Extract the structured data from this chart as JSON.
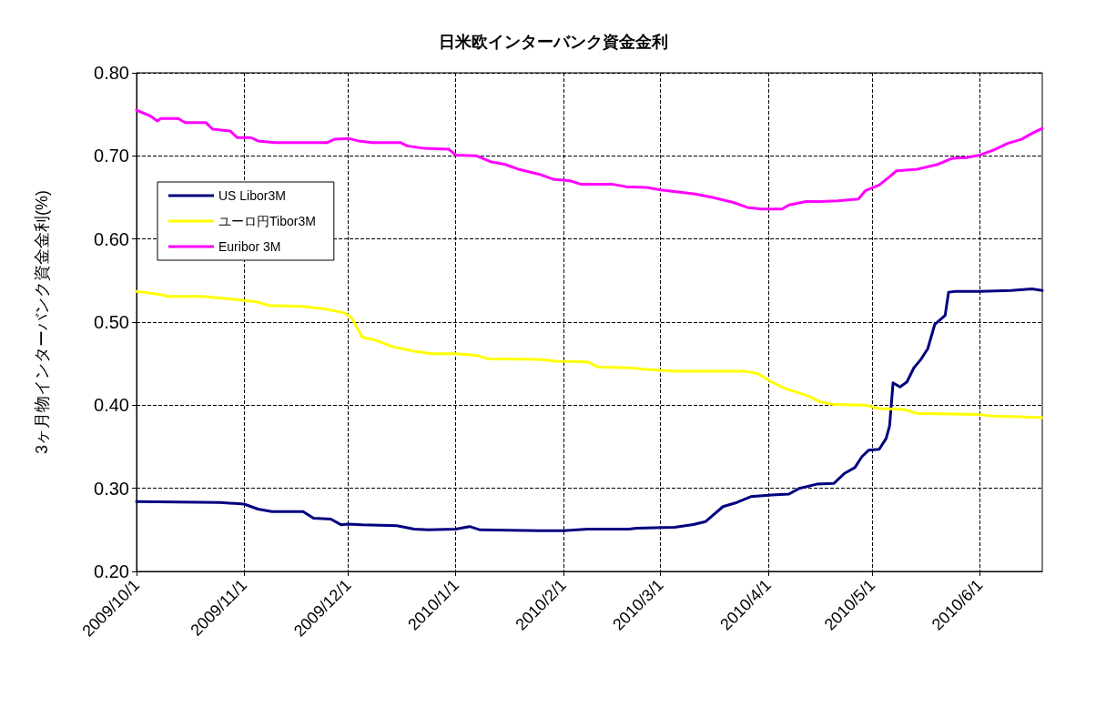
{
  "chart_data": {
    "type": "line",
    "title": "日米欧インターバンク資金金利",
    "ylabel": "3ヶ月物インターバンク資金金利(%)",
    "xlim": [
      "2009-10-01",
      "2010-06-19"
    ],
    "xticks": [
      {
        "value": "2009-10-01",
        "label": "2009/10/1"
      },
      {
        "value": "2009-11-01",
        "label": "2009/11/1"
      },
      {
        "value": "2009-12-01",
        "label": "2009/12/1"
      },
      {
        "value": "2010-01-01",
        "label": "2010/1/1"
      },
      {
        "value": "2010-02-01",
        "label": "2010/2/1"
      },
      {
        "value": "2010-03-01",
        "label": "2010/3/1"
      },
      {
        "value": "2010-04-01",
        "label": "2010/4/1"
      },
      {
        "value": "2010-05-01",
        "label": "2010/5/1"
      },
      {
        "value": "2010-06-01",
        "label": "2010/6/1"
      }
    ],
    "ylim": [
      0.2,
      0.8
    ],
    "yticks": [
      {
        "value": 0.2,
        "label": "0.20"
      },
      {
        "value": 0.3,
        "label": "0.30"
      },
      {
        "value": 0.4,
        "label": "0.40"
      },
      {
        "value": 0.5,
        "label": "0.50"
      },
      {
        "value": 0.6,
        "label": "0.60"
      },
      {
        "value": 0.7,
        "label": "0.70"
      },
      {
        "value": 0.8,
        "label": "0.80"
      }
    ],
    "grid": true,
    "legend": "top left",
    "marker": "none",
    "line_style": "solid",
    "series": [
      {
        "name": "US Libor3M",
        "color": "#000080",
        "x": [
          "2009-10-01",
          "2009-10-25",
          "2009-11-01",
          "2009-11-05",
          "2009-11-09",
          "2009-11-18",
          "2009-11-21",
          "2009-11-26",
          "2009-11-29",
          "2009-12-01",
          "2009-12-05",
          "2009-12-15",
          "2009-12-20",
          "2009-12-24",
          "2010-01-01",
          "2010-01-05",
          "2010-01-08",
          "2010-01-25",
          "2010-02-01",
          "2010-02-08",
          "2010-02-20",
          "2010-02-22",
          "2010-03-05",
          "2010-03-10",
          "2010-03-14",
          "2010-03-19",
          "2010-03-23",
          "2010-03-27",
          "2010-04-02",
          "2010-04-07",
          "2010-04-10",
          "2010-04-15",
          "2010-04-20",
          "2010-04-23",
          "2010-04-26",
          "2010-04-28",
          "2010-04-30",
          "2010-05-03",
          "2010-05-05",
          "2010-05-06",
          "2010-05-07",
          "2010-05-09",
          "2010-05-11",
          "2010-05-13",
          "2010-05-15",
          "2010-05-17",
          "2010-05-19",
          "2010-05-22",
          "2010-05-23",
          "2010-05-25",
          "2010-06-01",
          "2010-06-10",
          "2010-06-16",
          "2010-06-19"
        ],
        "values": [
          0.284,
          0.283,
          0.281,
          0.275,
          0.272,
          0.272,
          0.264,
          0.263,
          0.256,
          0.257,
          0.256,
          0.255,
          0.251,
          0.25,
          0.251,
          0.254,
          0.25,
          0.249,
          0.249,
          0.251,
          0.251,
          0.252,
          0.253,
          0.256,
          0.26,
          0.278,
          0.283,
          0.29,
          0.292,
          0.293,
          0.3,
          0.305,
          0.306,
          0.318,
          0.325,
          0.338,
          0.346,
          0.347,
          0.36,
          0.375,
          0.427,
          0.422,
          0.428,
          0.445,
          0.455,
          0.468,
          0.497,
          0.508,
          0.536,
          0.537,
          0.537,
          0.538,
          0.54,
          0.538
        ]
      },
      {
        "name": "ユーロ円Tibor3M",
        "color": "#ffff00",
        "x": [
          "2009-10-01",
          "2009-10-08",
          "2009-10-10",
          "2009-10-20",
          "2009-10-25",
          "2009-10-30",
          "2009-11-05",
          "2009-11-08",
          "2009-11-18",
          "2009-11-24",
          "2009-11-30",
          "2009-12-02",
          "2009-12-05",
          "2009-12-09",
          "2009-12-14",
          "2009-12-20",
          "2009-12-25",
          "2010-01-01",
          "2010-01-07",
          "2010-01-10",
          "2010-01-25",
          "2010-01-30",
          "2010-02-08",
          "2010-02-11",
          "2010-02-20",
          "2010-02-25",
          "2010-03-05",
          "2010-03-25",
          "2010-03-29",
          "2010-04-02",
          "2010-04-06",
          "2010-04-12",
          "2010-04-16",
          "2010-04-20",
          "2010-04-29",
          "2010-05-03",
          "2010-05-10",
          "2010-05-14",
          "2010-05-31",
          "2010-06-05",
          "2010-06-12",
          "2010-06-19"
        ],
        "values": [
          0.537,
          0.533,
          0.531,
          0.531,
          0.529,
          0.527,
          0.524,
          0.52,
          0.519,
          0.516,
          0.511,
          0.505,
          0.482,
          0.478,
          0.47,
          0.465,
          0.462,
          0.462,
          0.46,
          0.456,
          0.455,
          0.453,
          0.452,
          0.446,
          0.445,
          0.443,
          0.441,
          0.441,
          0.438,
          0.428,
          0.42,
          0.412,
          0.404,
          0.401,
          0.4,
          0.396,
          0.395,
          0.39,
          0.389,
          0.387,
          0.386,
          0.385
        ]
      },
      {
        "name": "Euribor 3M",
        "color": "#ff00ff",
        "x": [
          "2009-10-01",
          "2009-10-05",
          "2009-10-07",
          "2009-10-08",
          "2009-10-13",
          "2009-10-15",
          "2009-10-21",
          "2009-10-23",
          "2009-10-28",
          "2009-10-30",
          "2009-11-03",
          "2009-11-05",
          "2009-11-10",
          "2009-11-25",
          "2009-11-27",
          "2009-12-01",
          "2009-12-04",
          "2009-12-08",
          "2009-12-16",
          "2009-12-18",
          "2009-12-23",
          "2009-12-30",
          "2010-01-01",
          "2010-01-07",
          "2010-01-11",
          "2010-01-15",
          "2010-01-19",
          "2010-01-25",
          "2010-01-29",
          "2010-02-03",
          "2010-02-06",
          "2010-02-15",
          "2010-02-19",
          "2010-02-25",
          "2010-03-01",
          "2010-03-05",
          "2010-03-11",
          "2010-03-16",
          "2010-03-22",
          "2010-03-26",
          "2010-03-30",
          "2010-04-05",
          "2010-04-07",
          "2010-04-12",
          "2010-04-16",
          "2010-04-21",
          "2010-04-27",
          "2010-04-29",
          "2010-05-03",
          "2010-05-06",
          "2010-05-08",
          "2010-05-14",
          "2010-05-20",
          "2010-05-24",
          "2010-05-28",
          "2010-06-01",
          "2010-06-05",
          "2010-06-09",
          "2010-06-13",
          "2010-06-16",
          "2010-06-19"
        ],
        "values": [
          0.755,
          0.748,
          0.742,
          0.745,
          0.745,
          0.74,
          0.74,
          0.732,
          0.73,
          0.722,
          0.722,
          0.718,
          0.716,
          0.716,
          0.72,
          0.721,
          0.718,
          0.716,
          0.716,
          0.712,
          0.709,
          0.708,
          0.701,
          0.7,
          0.693,
          0.69,
          0.684,
          0.678,
          0.672,
          0.67,
          0.666,
          0.666,
          0.663,
          0.662,
          0.659,
          0.657,
          0.654,
          0.65,
          0.644,
          0.638,
          0.636,
          0.636,
          0.641,
          0.645,
          0.645,
          0.646,
          0.648,
          0.658,
          0.665,
          0.675,
          0.682,
          0.684,
          0.69,
          0.697,
          0.698,
          0.701,
          0.707,
          0.715,
          0.72,
          0.727,
          0.733
        ]
      }
    ]
  }
}
